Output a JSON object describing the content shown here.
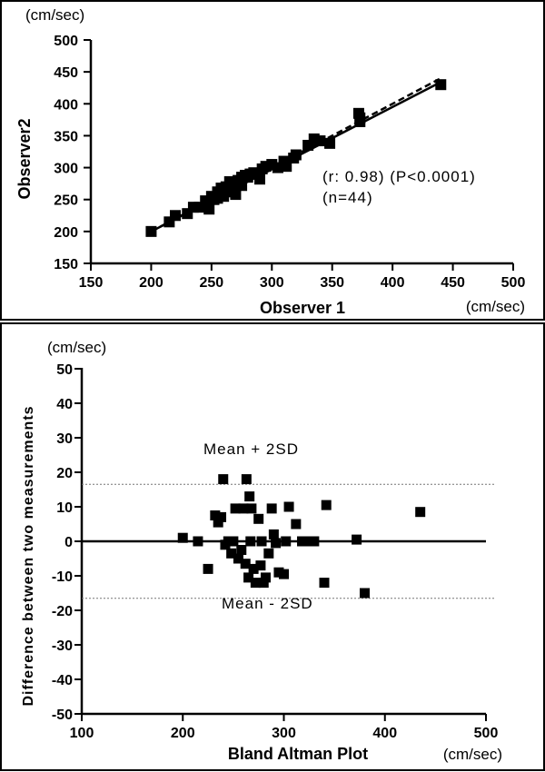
{
  "chart_data": [
    {
      "type": "scatter",
      "title": "",
      "xlabel": "Observer 1",
      "ylabel": "Observer2",
      "x_unit": "(cm/sec)",
      "y_unit": "(cm/sec)",
      "xlim": [
        150,
        500
      ],
      "ylim": [
        150,
        500
      ],
      "xticks": [
        "150",
        "200",
        "250",
        "300",
        "350",
        "400",
        "450",
        "500"
      ],
      "yticks": [
        "150",
        "200",
        "250",
        "300",
        "350",
        "400",
        "450",
        "500"
      ],
      "annotation_stats": "(r: 0.98) (P<0.0001)",
      "annotation_n": "(n=44)",
      "regression_line": {
        "x": [
          200,
          440
        ],
        "y": [
          200,
          434
        ]
      },
      "identity_line": {
        "x": [
          200,
          440
        ],
        "y": [
          200,
          440
        ]
      },
      "series": [
        {
          "name": "measurements",
          "x": [
            200,
            215,
            220,
            230,
            235,
            240,
            245,
            248,
            250,
            252,
            255,
            255,
            258,
            260,
            260,
            262,
            265,
            268,
            270,
            270,
            272,
            275,
            275,
            278,
            280,
            282,
            285,
            290,
            292,
            295,
            300,
            305,
            310,
            312,
            318,
            320,
            330,
            335,
            340,
            348,
            372,
            373,
            373,
            440
          ],
          "y": [
            200,
            215,
            225,
            228,
            238,
            238,
            248,
            235,
            255,
            250,
            262,
            252,
            268,
            262,
            255,
            270,
            278,
            262,
            272,
            258,
            280,
            285,
            272,
            288,
            285,
            290,
            292,
            282,
            298,
            302,
            305,
            300,
            310,
            302,
            315,
            320,
            335,
            345,
            342,
            338,
            385,
            378,
            372,
            430
          ]
        }
      ]
    },
    {
      "type": "scatter",
      "title": "Bland Altman Plot",
      "xlabel": "Bland Altman Plot",
      "ylabel": "Difference between two measurements",
      "x_unit": "(cm/sec)",
      "y_unit": "(cm/sec)",
      "xlim": [
        100,
        500
      ],
      "ylim": [
        -50,
        50
      ],
      "xticks": [
        "100",
        "200",
        "300",
        "400",
        "500"
      ],
      "yticks": [
        "50",
        "40",
        "30",
        "20",
        "10",
        "0",
        "-10",
        "-20",
        "-30",
        "-40",
        "-50"
      ],
      "mean_line": 0,
      "upper_limit": 16.5,
      "lower_limit": -16.5,
      "upper_label": "Mean + 2SD",
      "lower_label": "Mean - 2SD",
      "series": [
        {
          "name": "differences",
          "x": [
            200,
            215,
            225,
            232,
            235,
            238,
            240,
            242,
            245,
            248,
            250,
            252,
            255,
            258,
            260,
            262,
            263,
            265,
            266,
            267,
            268,
            270,
            272,
            275,
            277,
            278,
            280,
            282,
            285,
            288,
            290,
            292,
            295,
            300,
            302,
            305,
            312,
            318,
            325,
            330,
            340,
            342,
            372,
            380,
            435
          ],
          "y": [
            1,
            0,
            -8,
            7.5,
            5.5,
            7,
            18,
            -1,
            0,
            -3.5,
            0,
            9.5,
            -5,
            -2.5,
            9.5,
            -6.5,
            18,
            -10.5,
            13,
            0,
            9.5,
            -8,
            -12,
            6.5,
            -7,
            0,
            -12,
            -10.5,
            -3.5,
            9.5,
            2,
            -0.5,
            -9,
            -9.5,
            0,
            10,
            5,
            0,
            0,
            0,
            -12,
            10.5,
            0.5,
            -15,
            8.5
          ]
        }
      ]
    }
  ]
}
